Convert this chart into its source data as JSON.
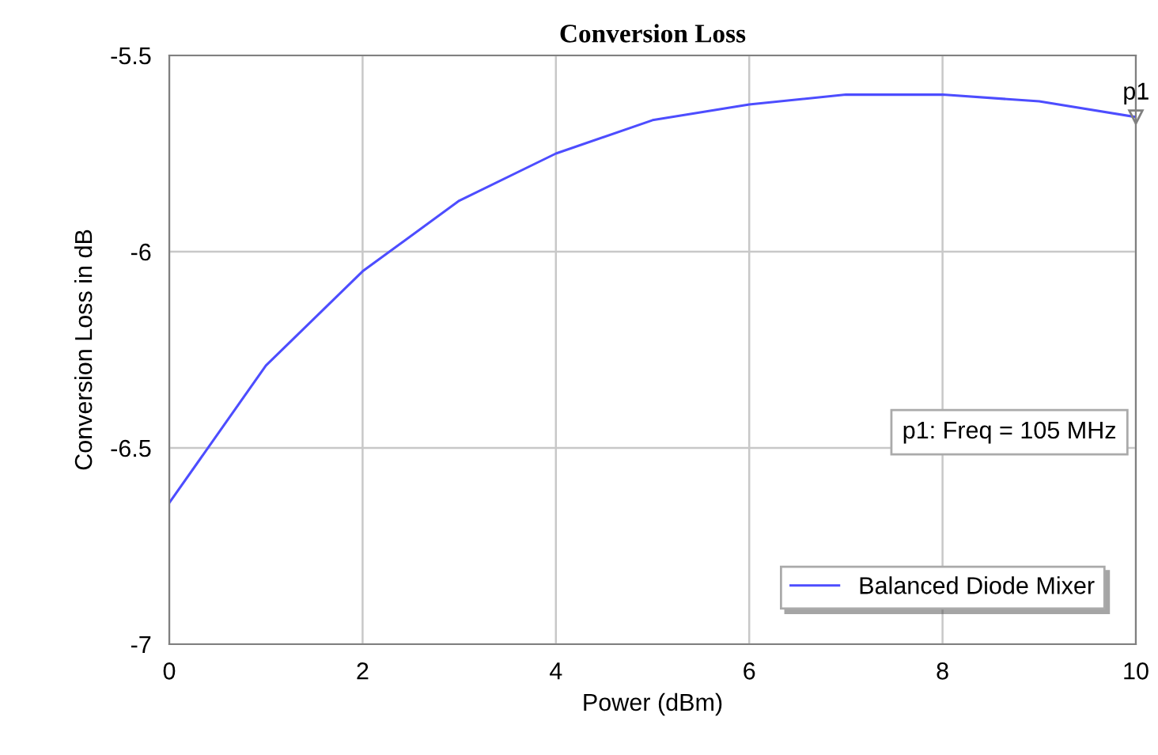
{
  "chart_data": {
    "type": "line",
    "title": "Conversion Loss",
    "xlabel": "Power (dBm)",
    "ylabel": "Conversion Loss in dB",
    "x": [
      0,
      1,
      2,
      3,
      4,
      5,
      6,
      7,
      8,
      9,
      10
    ],
    "series": [
      {
        "name": "Balanced Diode Mixer",
        "color": "#4d4dff",
        "values": [
          -6.64,
          -6.29,
          -6.05,
          -5.87,
          -5.75,
          -5.665,
          -5.625,
          -5.6,
          -5.6,
          -5.617,
          -5.657
        ]
      }
    ],
    "xlim": [
      0,
      10
    ],
    "xticks": [
      0,
      2,
      4,
      6,
      8,
      10
    ],
    "ylim": [
      -7,
      -5.5
    ],
    "yticks": [
      -7,
      -6.5,
      -6,
      -5.5
    ],
    "grid": true,
    "legend": "bottom right",
    "marker": "none",
    "line_style": "solid",
    "annotations": [
      {
        "text": "p1",
        "x": 10,
        "y": -5.657
      },
      "p1: Freq = 105 MHz"
    ]
  }
}
